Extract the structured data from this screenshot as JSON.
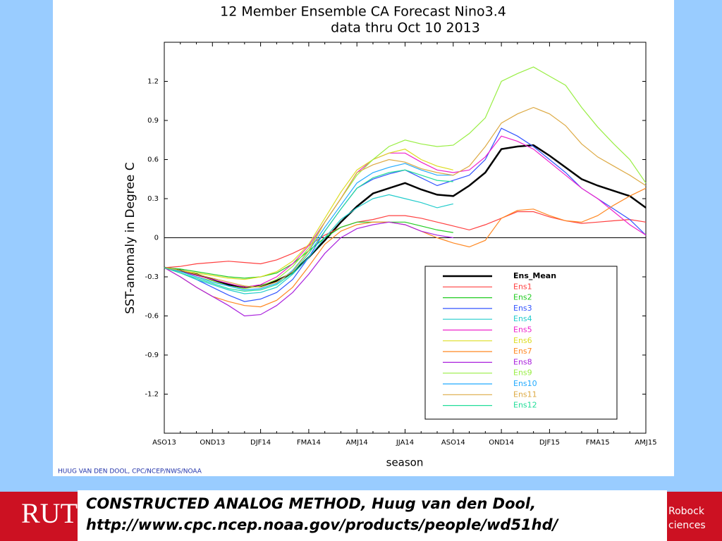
{
  "chart_data": {
    "type": "line",
    "title": "12 Member Ensemble CA Forecast Nino3.4",
    "subtitle": "data thru Oct 10 2013",
    "ylabel": "SST-anomaly in Degree C",
    "xlabel": "season",
    "credit": "HUUG VAN DEN DOOL, CPC/NCEP/NWS/NOAA",
    "categories": [
      "ASO13",
      null,
      null,
      "OND13",
      null,
      null,
      "DJF14",
      null,
      null,
      "FMA14",
      null,
      null,
      "AMJ14",
      null,
      null,
      "JJA14",
      null,
      null,
      "ASO14",
      null,
      null,
      "OND14",
      null,
      null,
      "DJF15",
      null,
      null,
      "FMA15",
      null,
      null,
      "AMJ15"
    ],
    "ylim": [
      -1.5,
      1.5
    ],
    "yticks": [
      -1.2,
      -0.9,
      -0.6,
      -0.3,
      0,
      0.3,
      0.6,
      0.9,
      1.2
    ],
    "series": [
      {
        "name": "Ens_Mean",
        "color": "#000000",
        "values": [
          -0.23,
          -0.25,
          -0.28,
          -0.32,
          -0.36,
          -0.38,
          -0.37,
          -0.33,
          -0.27,
          -0.15,
          -0.02,
          0.12,
          0.24,
          0.34,
          0.38,
          0.42,
          0.37,
          0.33,
          0.32,
          0.4,
          0.5,
          0.68,
          0.7,
          0.71,
          0.63,
          0.54,
          0.45,
          0.4,
          0.36,
          0.32,
          0.23
        ]
      },
      {
        "name": "Ens1",
        "color": "#ff4040",
        "values": [
          -0.23,
          -0.22,
          -0.2,
          -0.19,
          -0.18,
          -0.19,
          -0.2,
          -0.17,
          -0.12,
          -0.06,
          0.02,
          0.08,
          0.12,
          0.14,
          0.17,
          0.17,
          0.15,
          0.12,
          0.09,
          0.06,
          0.1,
          0.15,
          0.2,
          0.2,
          0.16,
          0.13,
          0.11,
          0.12,
          0.13,
          0.14,
          0.12
        ]
      },
      {
        "name": "Ens2",
        "color": "#22cc22",
        "values": [
          -0.23,
          -0.24,
          -0.26,
          -0.28,
          -0.3,
          -0.31,
          -0.3,
          -0.27,
          -0.2,
          -0.1,
          0.0,
          0.08,
          0.12,
          0.12,
          0.12,
          0.12,
          0.09,
          0.06,
          0.04,
          null,
          null,
          null,
          null,
          null,
          null,
          null,
          null,
          null,
          null,
          null,
          null
        ]
      },
      {
        "name": "Ens3",
        "color": "#3355ff",
        "values": [
          -0.23,
          -0.27,
          -0.32,
          -0.38,
          -0.44,
          -0.49,
          -0.47,
          -0.42,
          -0.32,
          -0.15,
          0.05,
          0.22,
          0.38,
          0.45,
          0.49,
          0.52,
          0.46,
          0.4,
          0.44,
          0.48,
          0.6,
          0.84,
          0.78,
          0.7,
          0.6,
          0.5,
          0.38,
          0.3,
          0.22,
          0.14,
          0.02
        ]
      },
      {
        "name": "Ens4",
        "color": "#22cccc",
        "values": [
          -0.23,
          -0.27,
          -0.32,
          -0.36,
          -0.4,
          -0.43,
          -0.42,
          -0.38,
          -0.28,
          -0.15,
          0.0,
          0.14,
          0.23,
          0.3,
          0.33,
          0.3,
          0.27,
          0.23,
          0.26,
          null,
          null,
          null,
          null,
          null,
          null,
          null,
          null,
          null,
          null,
          null,
          null
        ]
      },
      {
        "name": "Ens5",
        "color": "#ee22cc",
        "values": [
          -0.23,
          -0.26,
          -0.29,
          -0.32,
          -0.35,
          -0.38,
          -0.36,
          -0.3,
          -0.2,
          -0.06,
          0.12,
          0.3,
          0.5,
          0.6,
          0.65,
          0.65,
          0.58,
          0.52,
          0.5,
          0.52,
          0.62,
          0.78,
          0.74,
          0.68,
          0.58,
          0.48,
          0.38,
          0.3,
          0.2,
          0.1,
          0.02
        ]
      },
      {
        "name": "Ens6",
        "color": "#dddd22",
        "values": [
          -0.23,
          -0.25,
          -0.27,
          -0.29,
          -0.31,
          -0.32,
          -0.3,
          -0.26,
          -0.18,
          -0.05,
          0.15,
          0.35,
          0.52,
          0.6,
          0.65,
          0.68,
          0.6,
          0.55,
          0.52,
          null,
          null,
          null,
          null,
          null,
          null,
          null,
          null,
          null,
          null,
          null,
          null
        ]
      },
      {
        "name": "Ens7",
        "color": "#ff8822",
        "values": [
          -0.23,
          -0.3,
          -0.38,
          -0.45,
          -0.49,
          -0.52,
          -0.53,
          -0.48,
          -0.38,
          -0.22,
          -0.05,
          0.05,
          0.1,
          0.12,
          0.12,
          0.1,
          0.05,
          0.0,
          -0.04,
          -0.07,
          -0.02,
          0.15,
          0.21,
          0.22,
          0.17,
          0.13,
          0.12,
          0.17,
          0.25,
          0.32,
          0.38
        ]
      },
      {
        "name": "Ens8",
        "color": "#aa22dd",
        "values": [
          -0.23,
          -0.3,
          -0.38,
          -0.45,
          -0.52,
          -0.6,
          -0.59,
          -0.52,
          -0.42,
          -0.28,
          -0.12,
          0.0,
          0.07,
          0.1,
          0.12,
          0.1,
          0.05,
          0.02,
          0.0,
          null,
          null,
          null,
          null,
          null,
          null,
          null,
          null,
          null,
          null,
          null,
          null
        ]
      },
      {
        "name": "Ens9",
        "color": "#99ee44",
        "values": [
          -0.23,
          -0.26,
          -0.3,
          -0.33,
          -0.37,
          -0.39,
          -0.37,
          -0.32,
          -0.22,
          -0.08,
          0.12,
          0.3,
          0.48,
          0.6,
          0.7,
          0.75,
          0.72,
          0.7,
          0.71,
          0.8,
          0.92,
          1.2,
          1.26,
          1.31,
          1.24,
          1.17,
          1.0,
          0.85,
          0.72,
          0.6,
          0.42
        ]
      },
      {
        "name": "Ens10",
        "color": "#22aaff",
        "values": [
          -0.23,
          -0.26,
          -0.3,
          -0.34,
          -0.37,
          -0.4,
          -0.39,
          -0.35,
          -0.25,
          -0.1,
          0.08,
          0.25,
          0.42,
          0.5,
          0.54,
          0.57,
          0.52,
          0.48,
          0.48,
          null,
          null,
          null,
          null,
          null,
          null,
          null,
          null,
          null,
          null,
          null,
          null
        ]
      },
      {
        "name": "Ens11",
        "color": "#ddaa44",
        "values": [
          -0.23,
          -0.25,
          -0.28,
          -0.31,
          -0.34,
          -0.37,
          -0.38,
          -0.34,
          -0.26,
          -0.1,
          0.12,
          0.3,
          0.5,
          0.56,
          0.6,
          0.58,
          0.53,
          0.5,
          0.48,
          0.55,
          0.7,
          0.88,
          0.95,
          1.0,
          0.95,
          0.86,
          0.72,
          0.62,
          0.55,
          0.48,
          0.4
        ]
      },
      {
        "name": "Ens12",
        "color": "#22dd99",
        "values": [
          -0.23,
          -0.27,
          -0.31,
          -0.35,
          -0.39,
          -0.41,
          -0.4,
          -0.36,
          -0.27,
          -0.12,
          0.05,
          0.22,
          0.38,
          0.46,
          0.5,
          0.52,
          0.48,
          0.44,
          0.43,
          null,
          null,
          null,
          null,
          null,
          null,
          null,
          null,
          null,
          null,
          null,
          null
        ]
      }
    ],
    "zero_line": true,
    "legend": "lower-right"
  },
  "footer": {
    "logo": "RUT",
    "caption": [
      "CONSTRUCTED ANALOG METHOD, Huug van den Dool,",
      "http://www.cpc.ncep.noaa.gov/products/people/wd51hd/"
    ],
    "right": [
      "Robock",
      "ciences"
    ]
  }
}
